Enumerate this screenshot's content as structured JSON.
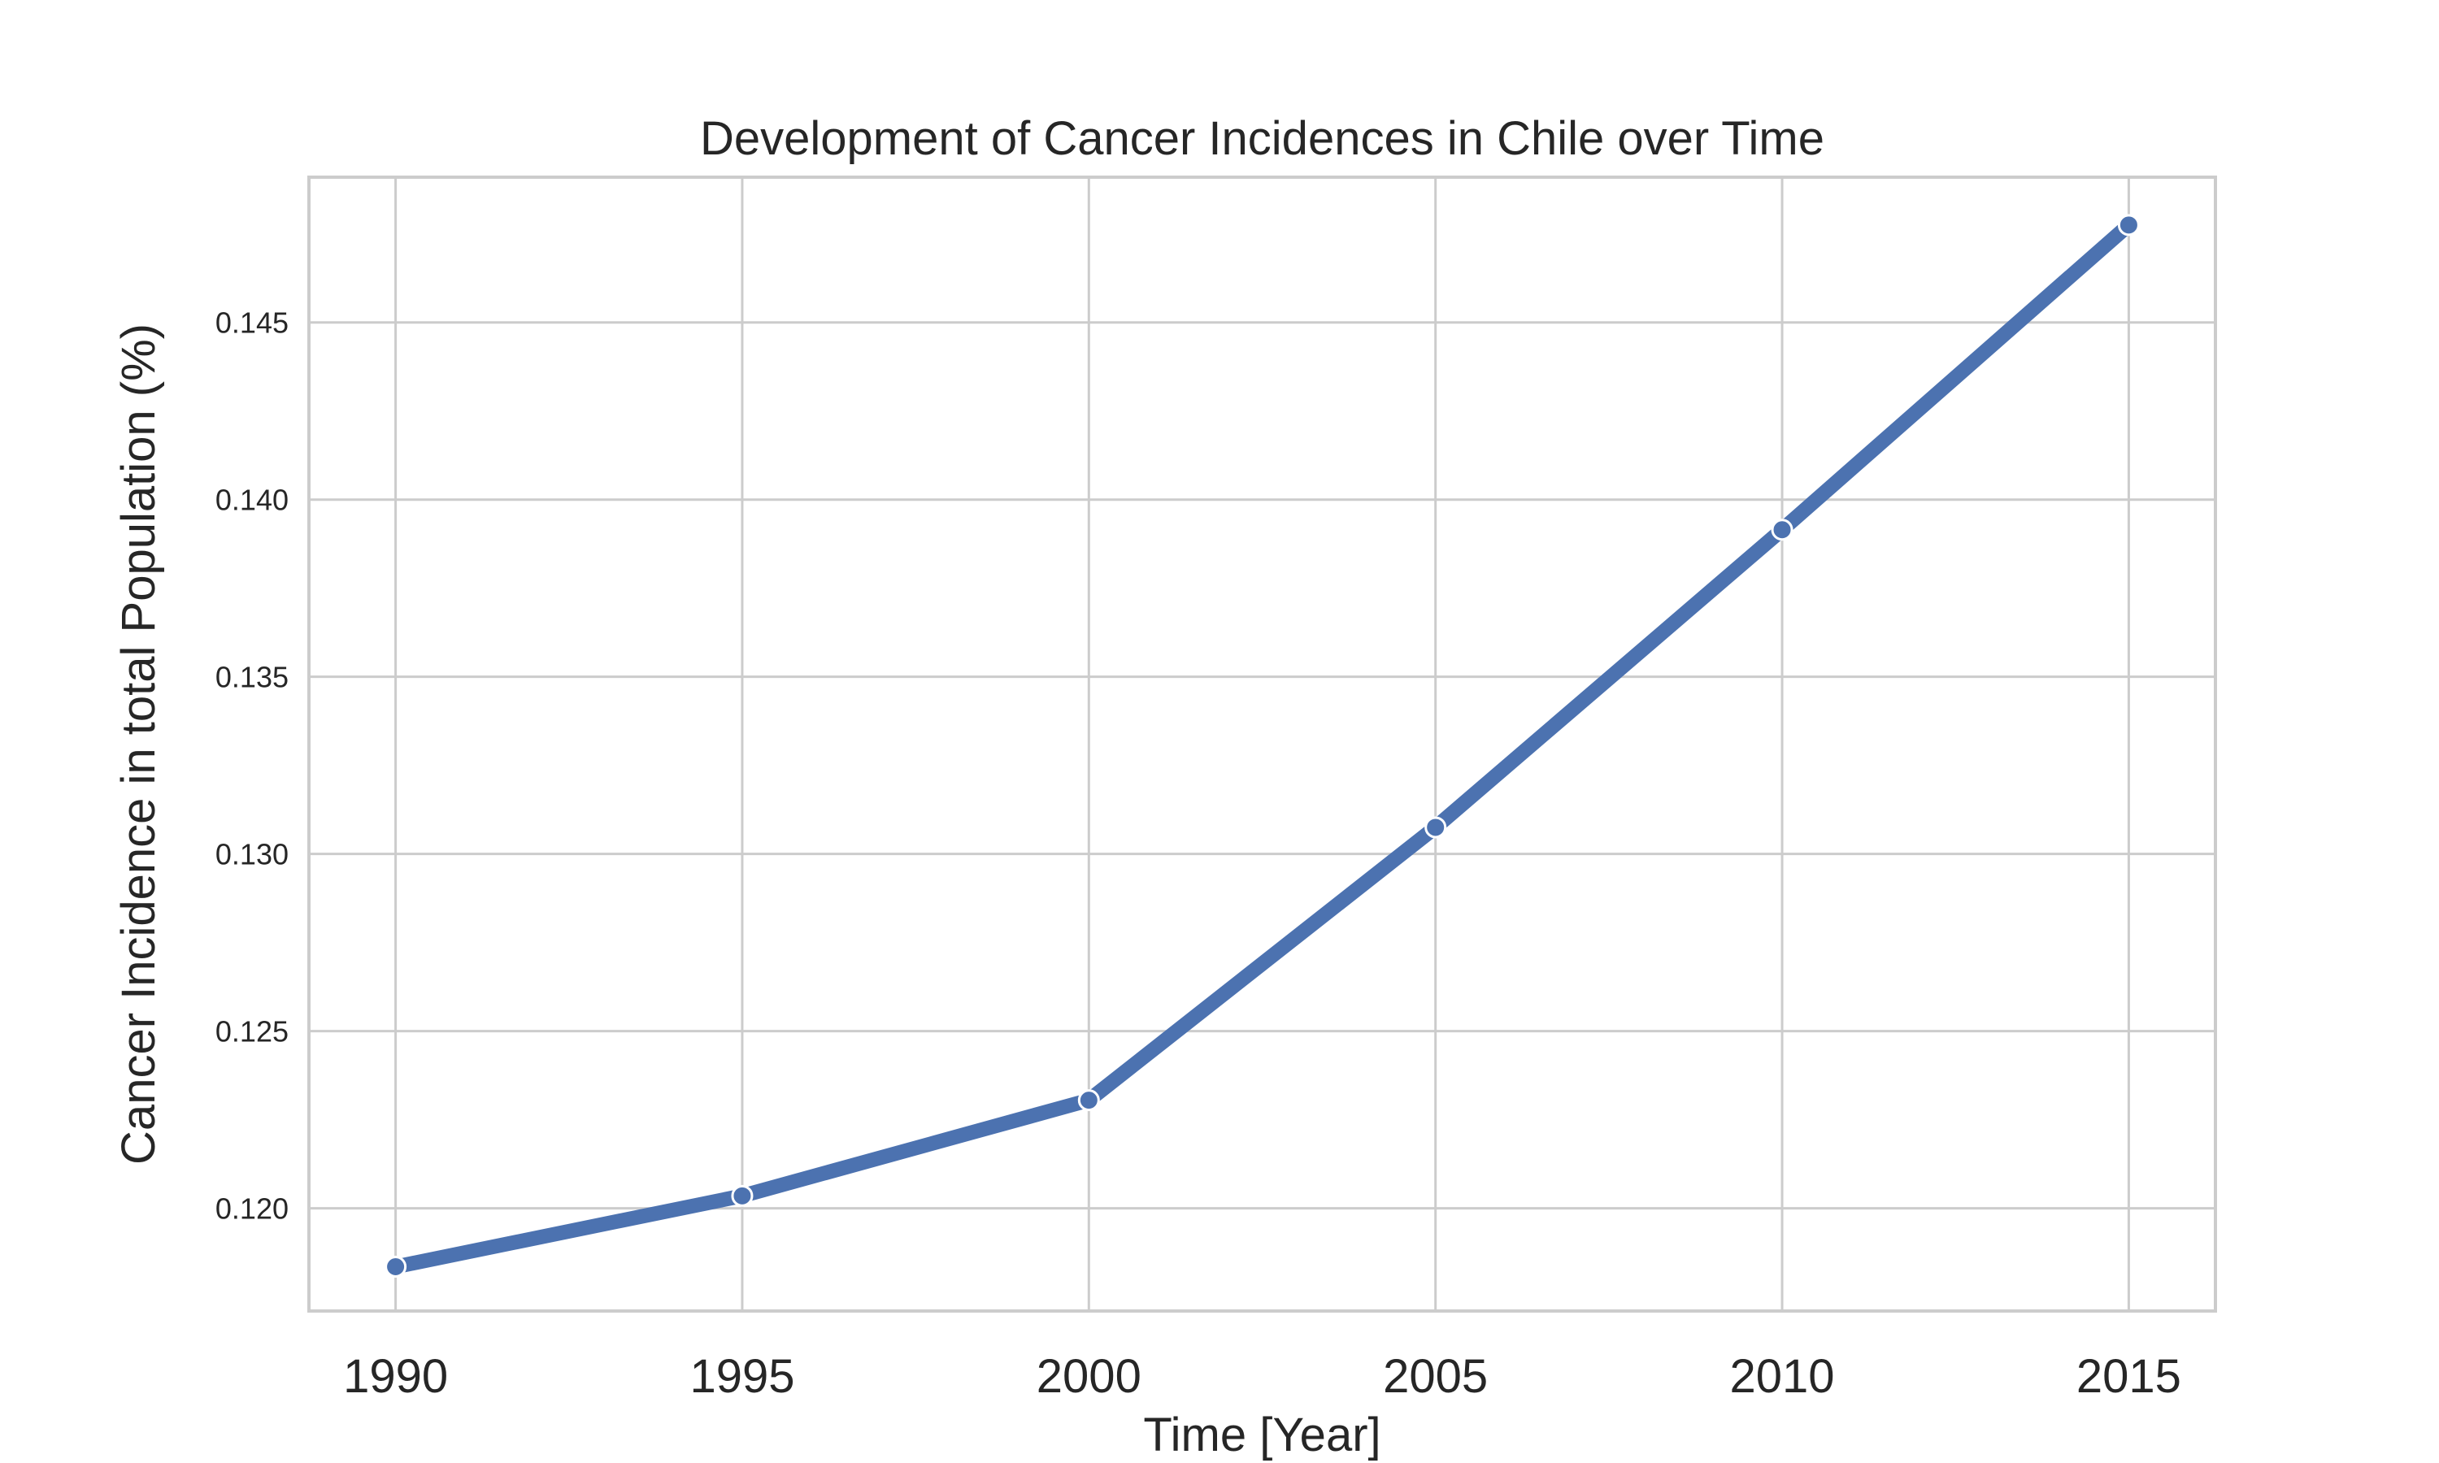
{
  "chart_data": {
    "type": "line",
    "title": "Development of Cancer Incidences in Chile over Time",
    "xlabel": "Time [Year]",
    "ylabel": "Cancer Incidence in total Population (%)",
    "x": [
      1990,
      1995,
      2000,
      2005,
      2010,
      2015
    ],
    "series": [
      {
        "values": [
          0.11835,
          0.12035,
          0.12305,
          0.13075,
          0.13915,
          0.14775
        ],
        "color": "#4c72b0"
      }
    ],
    "xticks": [
      "1990",
      "1995",
      "2000",
      "2005",
      "2010",
      "2015"
    ],
    "yticks": [
      "0.120",
      "0.125",
      "0.130",
      "0.135",
      "0.140",
      "0.145"
    ],
    "xlim": [
      1988.75,
      2016.25
    ],
    "ylim": [
      0.1171,
      0.1491
    ],
    "grid": true,
    "legend": false,
    "markers": true
  }
}
